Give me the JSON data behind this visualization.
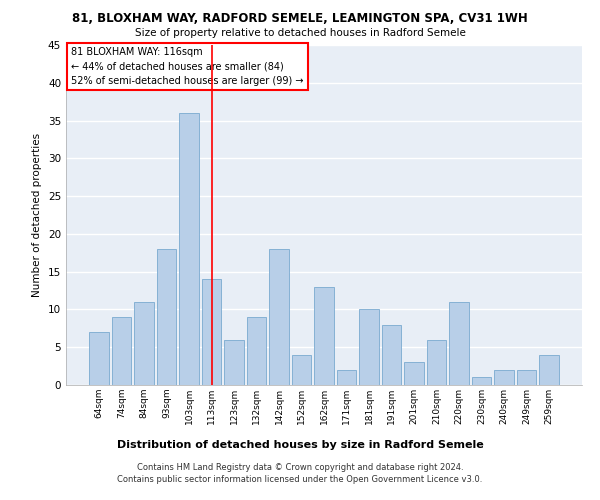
{
  "title1": "81, BLOXHAM WAY, RADFORD SEMELE, LEAMINGTON SPA, CV31 1WH",
  "title2": "Size of property relative to detached houses in Radford Semele",
  "xlabel": "Distribution of detached houses by size in Radford Semele",
  "ylabel": "Number of detached properties",
  "categories": [
    "64sqm",
    "74sqm",
    "84sqm",
    "93sqm",
    "103sqm",
    "113sqm",
    "123sqm",
    "132sqm",
    "142sqm",
    "152sqm",
    "162sqm",
    "171sqm",
    "181sqm",
    "191sqm",
    "201sqm",
    "210sqm",
    "220sqm",
    "230sqm",
    "240sqm",
    "249sqm",
    "259sqm"
  ],
  "values": [
    7,
    9,
    11,
    18,
    36,
    14,
    6,
    9,
    18,
    4,
    13,
    2,
    10,
    8,
    3,
    6,
    11,
    1,
    2,
    2,
    4
  ],
  "bar_color": "#b8cfe8",
  "bar_edge_color": "#7aaad0",
  "vline_index": 5,
  "annotation_lines": [
    "81 BLOXHAM WAY: 116sqm",
    "← 44% of detached houses are smaller (84)",
    "52% of semi-detached houses are larger (99) →"
  ],
  "annotation_box_color": "white",
  "annotation_box_edge_color": "red",
  "vline_color": "red",
  "ylim": [
    0,
    45
  ],
  "yticks": [
    0,
    5,
    10,
    15,
    20,
    25,
    30,
    35,
    40,
    45
  ],
  "bg_color": "#e8eef6",
  "footer1": "Contains HM Land Registry data © Crown copyright and database right 2024.",
  "footer2": "Contains public sector information licensed under the Open Government Licence v3.0."
}
